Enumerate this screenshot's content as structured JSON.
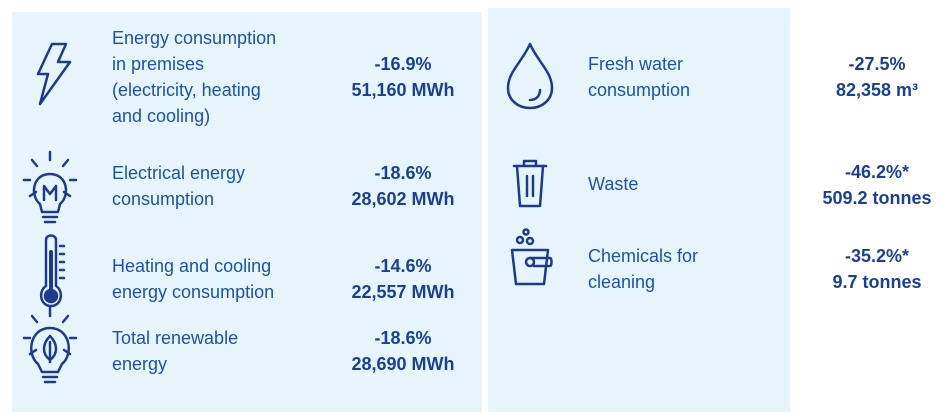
{
  "left": {
    "items": [
      {
        "label_lines": [
          "Energy consumption",
          "in premises",
          "(electricity, heating",
          "and cooling)"
        ],
        "change": "-16.9%",
        "amount": "51,160 MWh"
      },
      {
        "label_lines": [
          "Electrical energy",
          "consumption"
        ],
        "change": "-18.6%",
        "amount": "28,602 MWh"
      },
      {
        "label_lines": [
          "Heating and cooling",
          "energy consumption"
        ],
        "change": "-14.6%",
        "amount": "22,557 MWh"
      },
      {
        "label_lines": [
          "Total renewable",
          "energy"
        ],
        "change": "-18.6%",
        "amount": "28,690 MWh"
      }
    ]
  },
  "right": {
    "items": [
      {
        "label_lines": [
          "Fresh water",
          "consumption"
        ],
        "change": "-27.5%",
        "amount": "82,358 m³"
      },
      {
        "label_lines": [
          "Waste"
        ],
        "change": "-46.2%*",
        "amount": "509.2 tonnes"
      },
      {
        "label_lines": [
          "Chemicals for",
          "cleaning"
        ],
        "change": "-35.2%*",
        "amount": "9.7 tonnes"
      }
    ]
  }
}
